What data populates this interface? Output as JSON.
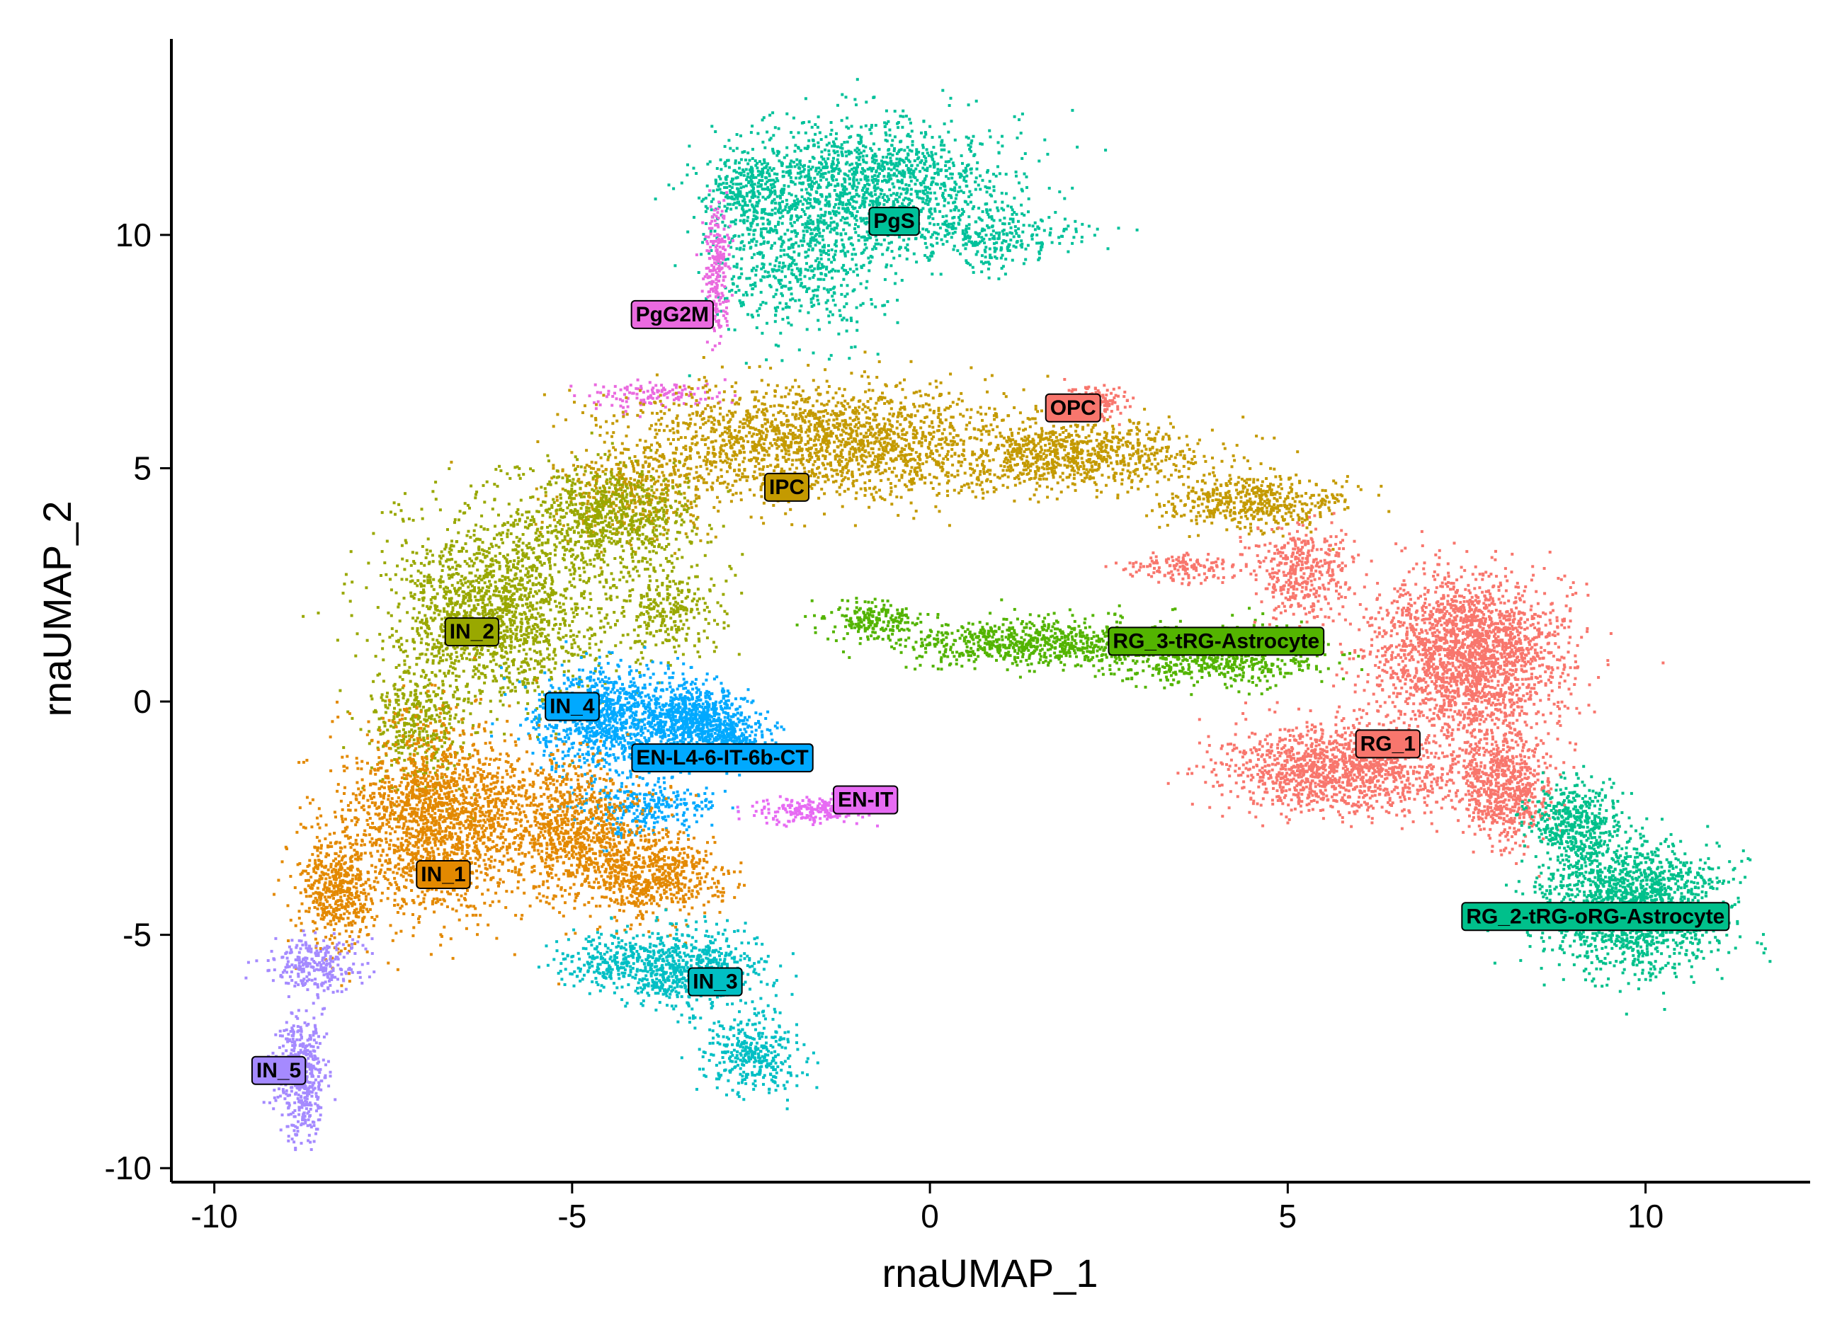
{
  "chart_data": {
    "type": "scatter",
    "title": "",
    "xlabel": "rnaUMAP_1",
    "ylabel": "rnaUMAP_2",
    "xlim": [
      -10.6,
      12.3
    ],
    "ylim": [
      -10.3,
      14.2
    ],
    "x_ticks": [
      -10,
      -5,
      0,
      5,
      10
    ],
    "y_ticks": [
      -10,
      -5,
      0,
      5,
      10
    ],
    "x_tick_labels": [
      "-10",
      "-5",
      "0",
      "5",
      "10"
    ],
    "y_tick_labels": [
      "-10",
      "-5",
      "0",
      "5",
      "10"
    ],
    "grid": false,
    "legend": "none",
    "clusters": [
      {
        "label": "PgS",
        "color": "#00C19A",
        "label_x": -0.5,
        "label_y": 10.3,
        "blobs": [
          [
            -0.8,
            11.2,
            1.7,
            1.2,
            1300
          ],
          [
            -1.8,
            9.6,
            1.1,
            1.6,
            700
          ],
          [
            0.8,
            10.0,
            1.1,
            0.6,
            300
          ],
          [
            -2.6,
            10.9,
            0.5,
            1.0,
            250
          ]
        ]
      },
      {
        "label": "PgG2M",
        "color": "#EA6ADF",
        "label_x": -3.6,
        "label_y": 8.3,
        "blobs": [
          [
            -3.0,
            9.2,
            0.15,
            1.3,
            220
          ],
          [
            -3.9,
            6.6,
            0.9,
            0.3,
            120
          ]
        ]
      },
      {
        "label": "OPC",
        "color": "#F8766D",
        "label_x": 2.0,
        "label_y": 6.3,
        "blobs": [
          [
            2.3,
            6.45,
            0.35,
            0.3,
            150
          ]
        ]
      },
      {
        "label": "IPC",
        "color": "#C49A00",
        "label_x": -2.0,
        "label_y": 4.6,
        "blobs": [
          [
            -1.5,
            5.6,
            2.6,
            1.1,
            1900
          ],
          [
            2.0,
            5.3,
            1.7,
            0.6,
            800
          ],
          [
            4.5,
            4.3,
            1.1,
            0.5,
            500
          ],
          [
            -4.2,
            4.5,
            1.0,
            0.9,
            400
          ]
        ]
      },
      {
        "label": "IN_2",
        "color": "#99A800",
        "label_x": -6.4,
        "label_y": 1.5,
        "blobs": [
          [
            -6.1,
            2.0,
            1.3,
            1.8,
            1700
          ],
          [
            -4.5,
            4.0,
            1.1,
            1.0,
            700
          ],
          [
            -7.2,
            -0.5,
            0.6,
            1.2,
            400
          ],
          [
            -3.7,
            2.0,
            0.7,
            1.0,
            300
          ]
        ]
      },
      {
        "label": "IN_4",
        "color": "#00A9FF",
        "label_x": -5.0,
        "label_y": -0.1,
        "blobs": [
          [
            -4.5,
            -0.3,
            0.9,
            1.0,
            1000
          ],
          [
            -3.3,
            -0.3,
            0.6,
            0.6,
            600
          ],
          [
            -4.0,
            -2.2,
            0.9,
            0.6,
            300
          ]
        ]
      },
      {
        "label": "EN-L4-6-IT-6b-CT",
        "color": "#00A9FF",
        "label_x": -2.9,
        "label_y": -1.2,
        "blobs": [
          [
            -2.9,
            -0.8,
            0.6,
            0.5,
            350
          ]
        ]
      },
      {
        "label": "EN-IT",
        "color": "#E76BF3",
        "label_x": -0.9,
        "label_y": -2.1,
        "blobs": [
          [
            -1.7,
            -2.3,
            0.7,
            0.25,
            200
          ]
        ]
      },
      {
        "label": "IN_1",
        "color": "#E38900",
        "label_x": -6.8,
        "label_y": -3.7,
        "blobs": [
          [
            -6.9,
            -2.5,
            1.2,
            1.8,
            1800
          ],
          [
            -5.0,
            -2.7,
            1.0,
            1.4,
            900
          ],
          [
            -8.3,
            -4.0,
            0.5,
            1.2,
            500
          ],
          [
            -3.9,
            -3.7,
            1.0,
            0.8,
            600
          ]
        ]
      },
      {
        "label": "IN_3",
        "color": "#00BFC4",
        "label_x": -3.0,
        "label_y": -6.0,
        "blobs": [
          [
            -3.4,
            -5.7,
            0.9,
            0.7,
            700
          ],
          [
            -2.5,
            -7.5,
            0.6,
            0.8,
            350
          ],
          [
            -4.5,
            -5.5,
            0.6,
            0.5,
            200
          ]
        ]
      },
      {
        "label": "IN_5",
        "color": "#A58AFF",
        "label_x": -9.1,
        "label_y": -7.9,
        "blobs": [
          [
            -8.8,
            -8.0,
            0.3,
            1.2,
            500
          ],
          [
            -8.6,
            -5.6,
            0.6,
            0.5,
            250
          ]
        ]
      },
      {
        "label": "RG_3-tRG-Astrocyte",
        "color": "#53B400",
        "label_x": 4.0,
        "label_y": 1.3,
        "blobs": [
          [
            1.5,
            1.3,
            1.8,
            0.45,
            800
          ],
          [
            4.0,
            1.0,
            1.3,
            0.6,
            600
          ],
          [
            -0.8,
            1.8,
            0.6,
            0.35,
            200
          ]
        ]
      },
      {
        "label": "RG_1",
        "color": "#F8766D",
        "label_x": 6.4,
        "label_y": -0.9,
        "blobs": [
          [
            7.5,
            1.0,
            1.2,
            1.5,
            2200
          ],
          [
            5.7,
            -1.4,
            1.4,
            0.8,
            1300
          ],
          [
            8.0,
            -1.8,
            0.6,
            1.1,
            700
          ],
          [
            5.2,
            2.8,
            0.6,
            0.9,
            400
          ],
          [
            3.5,
            2.9,
            0.8,
            0.25,
            150
          ]
        ]
      },
      {
        "label": "RG_2-tRG-oRG-Astrocyte",
        "color": "#00C08B",
        "label_x": 9.3,
        "label_y": -4.6,
        "blobs": [
          [
            9.8,
            -4.4,
            1.1,
            1.2,
            1600
          ],
          [
            9.0,
            -2.6,
            0.6,
            0.9,
            500
          ]
        ]
      }
    ]
  }
}
